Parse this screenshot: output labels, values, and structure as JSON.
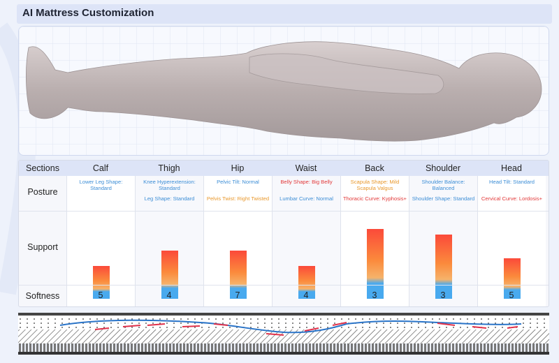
{
  "title": "AI Mattress Customization",
  "table": {
    "header_label": "Sections",
    "row_labels": {
      "posture": "Posture",
      "support": "Support",
      "softness": "Softness"
    },
    "sections": [
      {
        "name": "Calf",
        "posture": [
          {
            "text": "Lower Leg Shape: Standard",
            "tone": "blue"
          }
        ],
        "support": 0.47,
        "softness": "5"
      },
      {
        "name": "Thigh",
        "posture": [
          {
            "text": "Knee Hyperextension: Standard",
            "tone": "blue"
          },
          {
            "text": "Leg Shape: Standard",
            "tone": "blue"
          }
        ],
        "support": 0.69,
        "softness": "4"
      },
      {
        "name": "Hip",
        "posture": [
          {
            "text": "Pelvic Tilt: Normal",
            "tone": "blue"
          },
          {
            "text": "Pelvis Twist: Right Twisted",
            "tone": "orange"
          }
        ],
        "support": 0.69,
        "softness": "7"
      },
      {
        "name": "Waist",
        "posture": [
          {
            "text": "Belly Shape: Big Belly",
            "tone": "red"
          },
          {
            "text": "Lumbar Curve: Normal",
            "tone": "blue"
          }
        ],
        "support": 0.47,
        "softness": "4"
      },
      {
        "name": "Back",
        "posture": [
          {
            "text": "Scapula Shape: Mild Scapula Valgus",
            "tone": "orange"
          },
          {
            "text": "Thoracic Curve: Kyphosis+",
            "tone": "red"
          }
        ],
        "support": 1.0,
        "softness": "3"
      },
      {
        "name": "Shoulder",
        "posture": [
          {
            "text": "Shoulder Balance: Balanced",
            "tone": "blue"
          },
          {
            "text": "Shoulder Shape: Standard",
            "tone": "blue"
          }
        ],
        "support": 0.92,
        "softness": "3"
      },
      {
        "name": "Head",
        "posture": [
          {
            "text": "Head Tilt: Standard",
            "tone": "blue"
          },
          {
            "text": "Cervical Curve: Lordosis+",
            "tone": "red"
          }
        ],
        "support": 0.58,
        "softness": "5"
      }
    ]
  },
  "colors": {
    "blue": "#3d8ed6",
    "red": "#e23a3a",
    "orange": "#e9982c",
    "header": "#dde4f7"
  }
}
